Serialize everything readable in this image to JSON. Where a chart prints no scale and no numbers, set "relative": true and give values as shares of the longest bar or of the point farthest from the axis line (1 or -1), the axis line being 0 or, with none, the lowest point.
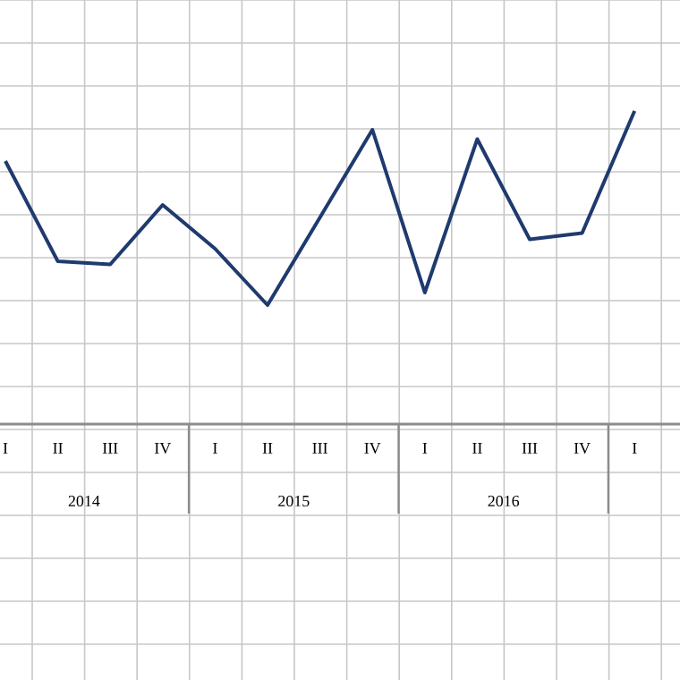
{
  "chart_data": {
    "type": "line",
    "relative": true,
    "grid": true,
    "categories": [
      "I",
      "II",
      "III",
      "IV",
      "I",
      "II",
      "III",
      "IV",
      "I",
      "II",
      "III",
      "IV",
      "I"
    ],
    "series": [
      {
        "color": "#1f3a6e",
        "values": [
          0.84,
          0.52,
          0.51,
          0.7,
          0.56,
          0.38,
          0.66,
          0.94,
          0.42,
          0.91,
          0.59,
          0.61,
          1.0
        ]
      }
    ],
    "annotations": [
      "2014",
      "2015",
      "2016"
    ]
  }
}
